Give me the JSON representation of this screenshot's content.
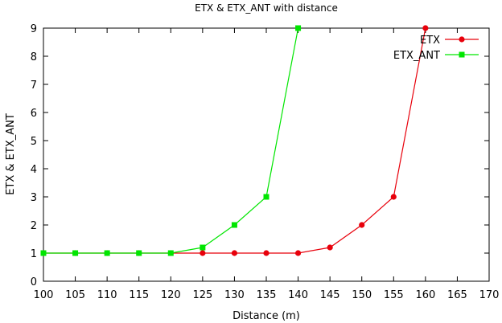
{
  "chart_data": {
    "type": "line",
    "title": "ETX & ETX_ANT with distance",
    "xlabel": "Distance (m)",
    "ylabel": "ETX & ETX_ANT",
    "xlim": [
      100,
      170
    ],
    "ylim": [
      0,
      9
    ],
    "xticks": [
      100,
      105,
      110,
      115,
      120,
      125,
      130,
      135,
      140,
      145,
      150,
      155,
      160,
      165,
      170
    ],
    "yticks": [
      0,
      1,
      2,
      3,
      4,
      5,
      6,
      7,
      8,
      9
    ],
    "grid": false,
    "legend_position": "top-right",
    "series": [
      {
        "name": "ETX",
        "color": "#e8000b",
        "marker": "circle",
        "x": [
          100,
          105,
          110,
          115,
          120,
          125,
          130,
          135,
          140,
          145,
          150,
          155,
          160
        ],
        "y": [
          1,
          1,
          1,
          1,
          1,
          1,
          1,
          1,
          1,
          1.2,
          2,
          3,
          9
        ]
      },
      {
        "name": "ETX_ANT",
        "color": "#00e600",
        "marker": "square",
        "x": [
          100,
          105,
          110,
          115,
          120,
          125,
          130,
          135,
          140
        ],
        "y": [
          1,
          1,
          1,
          1,
          1,
          1.2,
          2,
          3,
          9
        ]
      }
    ]
  }
}
